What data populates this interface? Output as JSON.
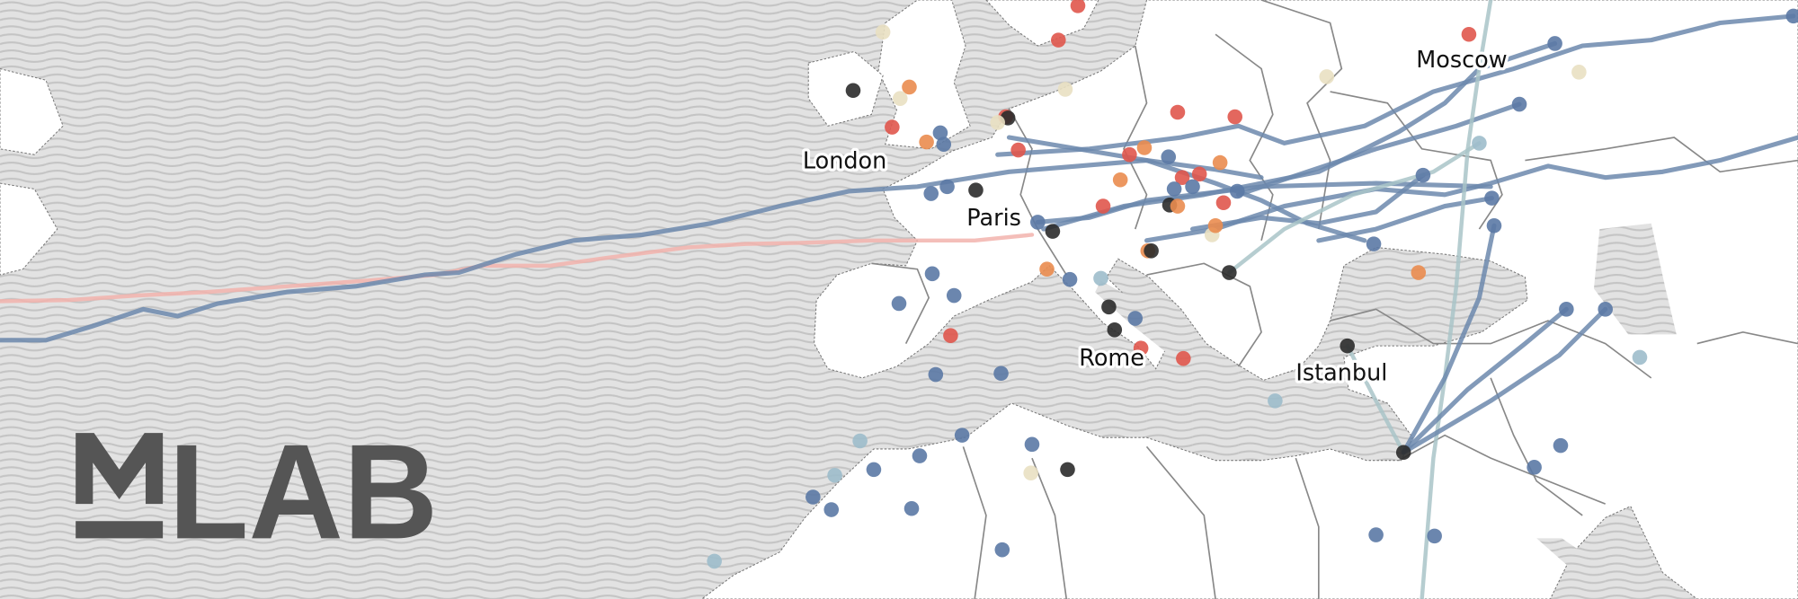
{
  "logo": {
    "text": "MLAB"
  },
  "cities": [
    {
      "name": "London"
    },
    {
      "name": "Paris"
    },
    {
      "name": "Rome"
    },
    {
      "name": "Istanbul"
    },
    {
      "name": "Moscow"
    }
  ],
  "colors": {
    "water_bg": "#e2e2e2",
    "water_wave": "#c6c6c6",
    "land": "#ffffff",
    "border": "#888888",
    "route_blue": "#6c88ad",
    "route_pink": "#f2b3ad",
    "route_teal": "#a9c4c8",
    "dot_blue": "#5b79a5",
    "dot_red": "#e0574c",
    "dot_orange": "#ea8c4f",
    "dot_black": "#2b2b2b",
    "dot_pale": "#e9e0c2",
    "dot_teal": "#9dbccb",
    "logo": "#555555"
  }
}
